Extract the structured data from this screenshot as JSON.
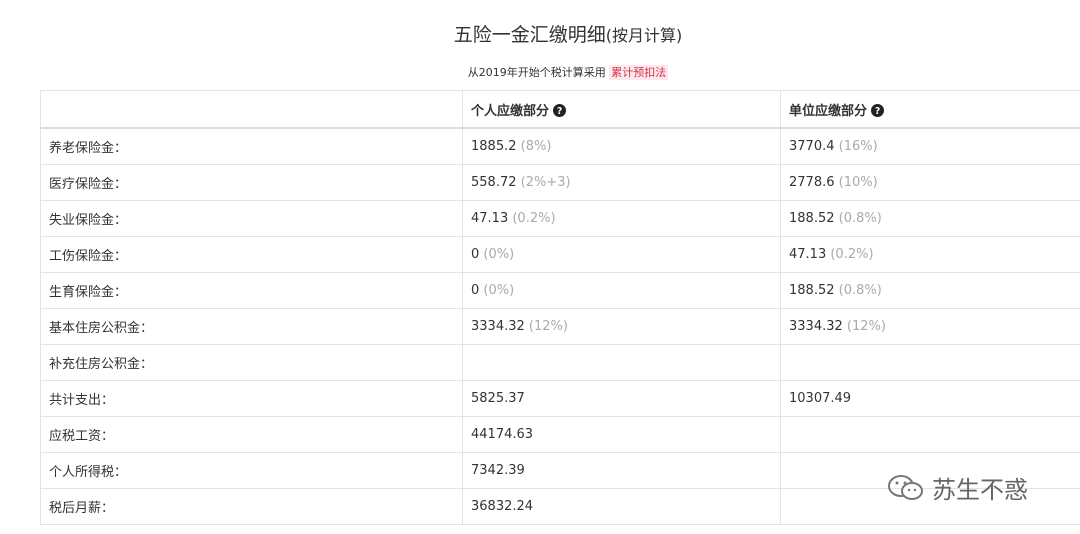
{
  "header": {
    "title": "五险一金汇缴明细",
    "title_suffix": "(按月计算)",
    "subtitle": "从2019年开始个税计算采用",
    "subtitle_link": "累计预扣法"
  },
  "table": {
    "columns": [
      "个人应缴部分",
      "单位应缴部分"
    ],
    "rows": [
      {
        "label": "养老保险金：",
        "personal": {
          "value": "1885.2",
          "note": "(8%)"
        },
        "company": {
          "value": "3770.4",
          "note": "(16%)"
        }
      },
      {
        "label": "医疗保险金：",
        "personal": {
          "value": "558.72",
          "note": "(2%+3)"
        },
        "company": {
          "value": "2778.6",
          "note": "(10%)"
        }
      },
      {
        "label": "失业保险金：",
        "personal": {
          "value": "47.13",
          "note": "(0.2%)"
        },
        "company": {
          "value": "188.52",
          "note": "(0.8%)"
        }
      },
      {
        "label": "工伤保险金：",
        "personal": {
          "value": "0",
          "note": "(0%)"
        },
        "company": {
          "value": "47.13",
          "note": "(0.2%)"
        }
      },
      {
        "label": "生育保险金：",
        "personal": {
          "value": "0",
          "note": "(0%)"
        },
        "company": {
          "value": "188.52",
          "note": "(0.8%)"
        }
      },
      {
        "label": "基本住房公积金：",
        "personal": {
          "value": "3334.32",
          "note": "(12%)"
        },
        "company": {
          "value": "3334.32",
          "note": "(12%)"
        }
      },
      {
        "label": "补充住房公积金：",
        "personal": null,
        "company": null
      },
      {
        "label": "共计支出：",
        "personal": {
          "value": "5825.37"
        },
        "company": {
          "value": "10307.49"
        }
      },
      {
        "label": "应税工资：",
        "personal": {
          "value": "44174.63"
        },
        "company": null
      },
      {
        "label": "个人所得税：",
        "personal": {
          "value": "7342.39"
        },
        "company": null
      },
      {
        "label": "税后月薪：",
        "personal": {
          "value": "36832.24"
        },
        "company": null
      }
    ]
  },
  "watermark": "苏生不惑"
}
